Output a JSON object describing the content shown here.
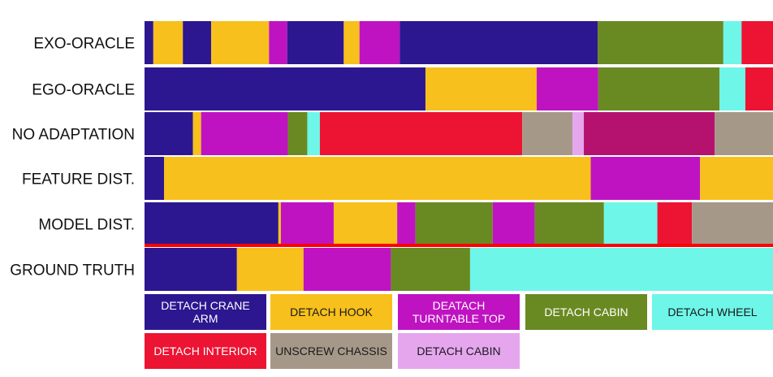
{
  "chart_data": {
    "type": "bar",
    "orientation": "horizontal-stacked-timeline",
    "x_unit": "fraction of sequence",
    "x_range": [
      0,
      1
    ],
    "rows": [
      {
        "name": "EXO-ORACLE",
        "segments": [
          {
            "label": "DETACH CRANE ARM",
            "start": 0.0,
            "end": 0.014
          },
          {
            "label": "DETACH HOOK",
            "start": 0.014,
            "end": 0.061
          },
          {
            "label": "DETACH CRANE ARM",
            "start": 0.061,
            "end": 0.106
          },
          {
            "label": "DETACH HOOK",
            "start": 0.106,
            "end": 0.198
          },
          {
            "label": "DEATACH TURNTABLE TOP",
            "start": 0.198,
            "end": 0.227
          },
          {
            "label": "DETACH CRANE ARM",
            "start": 0.227,
            "end": 0.317
          },
          {
            "label": "DETACH HOOK",
            "start": 0.317,
            "end": 0.342
          },
          {
            "label": "DEATACH TURNTABLE TOP",
            "start": 0.342,
            "end": 0.406
          },
          {
            "label": "DETACH CRANE ARM",
            "start": 0.406,
            "end": 0.721
          },
          {
            "label": "DETACH CABIN (GREEN)",
            "start": 0.721,
            "end": 0.921
          },
          {
            "label": "DETACH WHEEL",
            "start": 0.921,
            "end": 0.95
          },
          {
            "label": "DETACH INTERIOR",
            "start": 0.95,
            "end": 1.0
          }
        ]
      },
      {
        "name": "EGO-ORACLE",
        "segments": [
          {
            "label": "DETACH CRANE ARM",
            "start": 0.0,
            "end": 0.447
          },
          {
            "label": "DETACH HOOK",
            "start": 0.447,
            "end": 0.624
          },
          {
            "label": "DEATACH TURNTABLE TOP",
            "start": 0.624,
            "end": 0.722
          },
          {
            "label": "DETACH CABIN (GREEN)",
            "start": 0.722,
            "end": 0.915
          },
          {
            "label": "DETACH WHEEL",
            "start": 0.915,
            "end": 0.956
          },
          {
            "label": "DETACH INTERIOR",
            "start": 0.956,
            "end": 1.0
          }
        ]
      },
      {
        "name": "NO ADAPTATION",
        "segments": [
          {
            "label": "DETACH CRANE ARM",
            "start": 0.0,
            "end": 0.077
          },
          {
            "label": "DETACH HOOK",
            "start": 0.077,
            "end": 0.09
          },
          {
            "label": "DEATACH TURNTABLE TOP",
            "start": 0.09,
            "end": 0.228
          },
          {
            "label": "DETACH CABIN (GREEN)",
            "start": 0.228,
            "end": 0.259
          },
          {
            "label": "DETACH WHEEL",
            "start": 0.259,
            "end": 0.279
          },
          {
            "label": "DETACH INTERIOR",
            "start": 0.279,
            "end": 0.601
          },
          {
            "label": "UNSCREW CHASSIS",
            "start": 0.601,
            "end": 0.681
          },
          {
            "label": "DETACH CABIN (PINK)",
            "start": 0.681,
            "end": 0.699
          },
          {
            "label": "DEATACH TURNTABLE TOP (MAGENTA)",
            "start": 0.699,
            "end": 0.907
          },
          {
            "label": "UNSCREW CHASSIS",
            "start": 0.907,
            "end": 1.0
          }
        ]
      },
      {
        "name": "FEATURE DIST.",
        "segments": [
          {
            "label": "DETACH CRANE ARM",
            "start": 0.0,
            "end": 0.031
          },
          {
            "label": "DETACH HOOK",
            "start": 0.031,
            "end": 0.71
          },
          {
            "label": "DEATACH TURNTABLE TOP",
            "start": 0.71,
            "end": 0.884
          },
          {
            "label": "DETACH HOOK",
            "start": 0.884,
            "end": 1.0
          }
        ]
      },
      {
        "name": "MODEL DIST.",
        "segments": [
          {
            "label": "DETACH CRANE ARM",
            "start": 0.0,
            "end": 0.213
          },
          {
            "label": "DETACH HOOK",
            "start": 0.213,
            "end": 0.217
          },
          {
            "label": "DEATACH TURNTABLE TOP",
            "start": 0.217,
            "end": 0.301
          },
          {
            "label": "DETACH HOOK",
            "start": 0.301,
            "end": 0.402
          },
          {
            "label": "DEATACH TURNTABLE TOP",
            "start": 0.402,
            "end": 0.431
          },
          {
            "label": "DETACH CABIN (GREEN)",
            "start": 0.431,
            "end": 0.554
          },
          {
            "label": "DEATACH TURNTABLE TOP",
            "start": 0.554,
            "end": 0.621
          },
          {
            "label": "DETACH CABIN (GREEN)",
            "start": 0.621,
            "end": 0.731
          },
          {
            "label": "DETACH WHEEL",
            "start": 0.731,
            "end": 0.816
          },
          {
            "label": "DETACH INTERIOR",
            "start": 0.816,
            "end": 0.871
          },
          {
            "label": "UNSCREW CHASSIS",
            "start": 0.871,
            "end": 1.0
          }
        ]
      },
      {
        "name": "GROUND TRUTH",
        "segments": [
          {
            "label": "DETACH CRANE ARM",
            "start": 0.0,
            "end": 0.147
          },
          {
            "label": "DETACH HOOK",
            "start": 0.147,
            "end": 0.253
          },
          {
            "label": "DEATACH TURNTABLE TOP",
            "start": 0.253,
            "end": 0.392
          },
          {
            "label": "DETACH CABIN (GREEN)",
            "start": 0.392,
            "end": 0.518
          },
          {
            "label": "DETACH WHEEL",
            "start": 0.518,
            "end": 1.0
          }
        ]
      }
    ],
    "legend": [
      {
        "key": "DETACH CRANE ARM",
        "text": "DETACH CRANE ARM",
        "color": "#2c1790",
        "text_color": "#ffffff"
      },
      {
        "key": "DETACH HOOK",
        "text": "DETACH HOOK",
        "color": "#f7c01c",
        "text_color": "#1a1a1a"
      },
      {
        "key": "DEATACH TURNTABLE TOP",
        "text": "DEATACH TURNTABLE TOP",
        "color": "#bf13c2",
        "text_color": "#ffffff"
      },
      {
        "key": "DETACH CABIN (GREEN)",
        "text": "DETACH CABIN",
        "color": "#698a22",
        "text_color": "#ffffff"
      },
      {
        "key": "DETACH WHEEL",
        "text": "DETACH WHEEL",
        "color": "#6ef6e9",
        "text_color": "#1a1a1a"
      },
      {
        "key": "DETACH INTERIOR",
        "text": "DETACH INTERIOR",
        "color": "#ec1432",
        "text_color": "#ffffff"
      },
      {
        "key": "UNSCREW CHASSIS",
        "text": "UNSCREW CHASSIS",
        "color": "#a69889",
        "text_color": "#1a1a1a"
      },
      {
        "key": "DETACH CABIN (PINK)",
        "text": "DETACH CABIN",
        "color": "#e5a6ee",
        "text_color": "#1a1a1a"
      }
    ],
    "extra_colors": {
      "DEATACH TURNTABLE TOP (MAGENTA)": "#b5126f",
      "separator": "#ff0000"
    }
  }
}
